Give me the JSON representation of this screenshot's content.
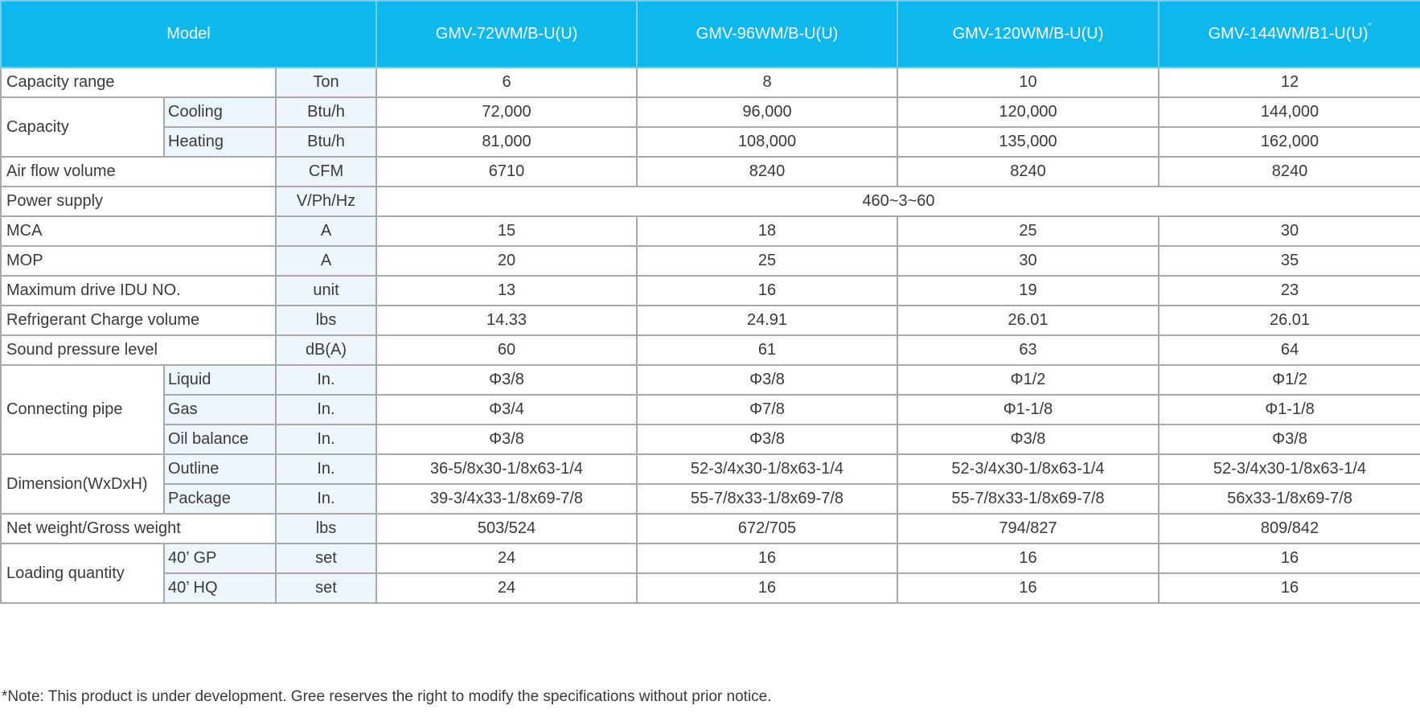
{
  "header": {
    "model_label": "Model",
    "models": [
      "GMV-72WM/B-U(U)",
      "GMV-96WM/B-U(U)",
      "GMV-120WM/B-U(U)",
      "GMV-144WM/B1-U(U)"
    ],
    "last_model_mark": "*"
  },
  "rows": [
    {
      "label": "Capacity range",
      "unit": "Ton",
      "values": [
        "6",
        "8",
        "10",
        "12"
      ]
    },
    {
      "label": "Capacity",
      "sub": "Cooling",
      "unit": "Btu/h",
      "values": [
        "72,000",
        "96,000",
        "120,000",
        "144,000"
      ]
    },
    {
      "sub": "Heating",
      "unit": "Btu/h",
      "values": [
        "81,000",
        "108,000",
        "135,000",
        "162,000"
      ]
    },
    {
      "label": "Air flow volume",
      "unit": "CFM",
      "values": [
        "6710",
        "8240",
        "8240",
        "8240"
      ]
    },
    {
      "label": "Power supply",
      "unit": "V/Ph/Hz",
      "value_merged": "460~3~60"
    },
    {
      "label": "MCA",
      "unit": "A",
      "values": [
        "15",
        "18",
        "25",
        "30"
      ]
    },
    {
      "label": "MOP",
      "unit": "A",
      "values": [
        "20",
        "25",
        "30",
        "35"
      ]
    },
    {
      "label": "Maximum drive IDU NO.",
      "unit": "unit",
      "values": [
        "13",
        "16",
        "19",
        "23"
      ]
    },
    {
      "label": "Refrigerant Charge volume",
      "unit": "lbs",
      "values": [
        "14.33",
        "24.91",
        "26.01",
        "26.01"
      ]
    },
    {
      "label": "Sound pressure level",
      "unit": "dB(A)",
      "values": [
        "60",
        "61",
        "63",
        "64"
      ]
    },
    {
      "label": "Connecting pipe",
      "sub": "Liquid",
      "unit": "In.",
      "values": [
        "Φ3/8",
        "Φ3/8",
        "Φ1/2",
        "Φ1/2"
      ]
    },
    {
      "sub": "Gas",
      "unit": "In.",
      "values": [
        "Φ3/4",
        "Φ7/8",
        "Φ1-1/8",
        "Φ1-1/8"
      ]
    },
    {
      "sub": "Oil balance",
      "unit": "In.",
      "values": [
        "Φ3/8",
        "Φ3/8",
        "Φ3/8",
        "Φ3/8"
      ]
    },
    {
      "label": "Dimension(WxDxH)",
      "sub": "Outline",
      "unit": "In.",
      "values": [
        "36-5/8x30-1/8x63-1/4",
        "52-3/4x30-1/8x63-1/4",
        "52-3/4x30-1/8x63-1/4",
        "52-3/4x30-1/8x63-1/4"
      ]
    },
    {
      "sub": "Package",
      "unit": "In.",
      "values": [
        "39-3/4x33-1/8x69-7/8",
        "55-7/8x33-1/8x69-7/8",
        "55-7/8x33-1/8x69-7/8",
        "56x33-1/8x69-7/8"
      ]
    },
    {
      "label": "Net weight/Gross weight",
      "unit": "lbs",
      "values": [
        "503/524",
        "672/705",
        "794/827",
        "809/842"
      ]
    },
    {
      "label": "Loading quantity",
      "sub": "40’ GP",
      "unit": "set",
      "values": [
        "24",
        "16",
        "16",
        "16"
      ]
    },
    {
      "sub": "40’ HQ",
      "unit": "set",
      "values": [
        "24",
        "16",
        "16",
        "16"
      ]
    }
  ],
  "footer": {
    "note": "*Note: This product is under development. Gree reserves the right to modify the specifications without prior notice."
  },
  "colors": {
    "header_bg": "#0db8ec",
    "label_bg": "#eef6fd",
    "border": "#a9a9a9"
  }
}
